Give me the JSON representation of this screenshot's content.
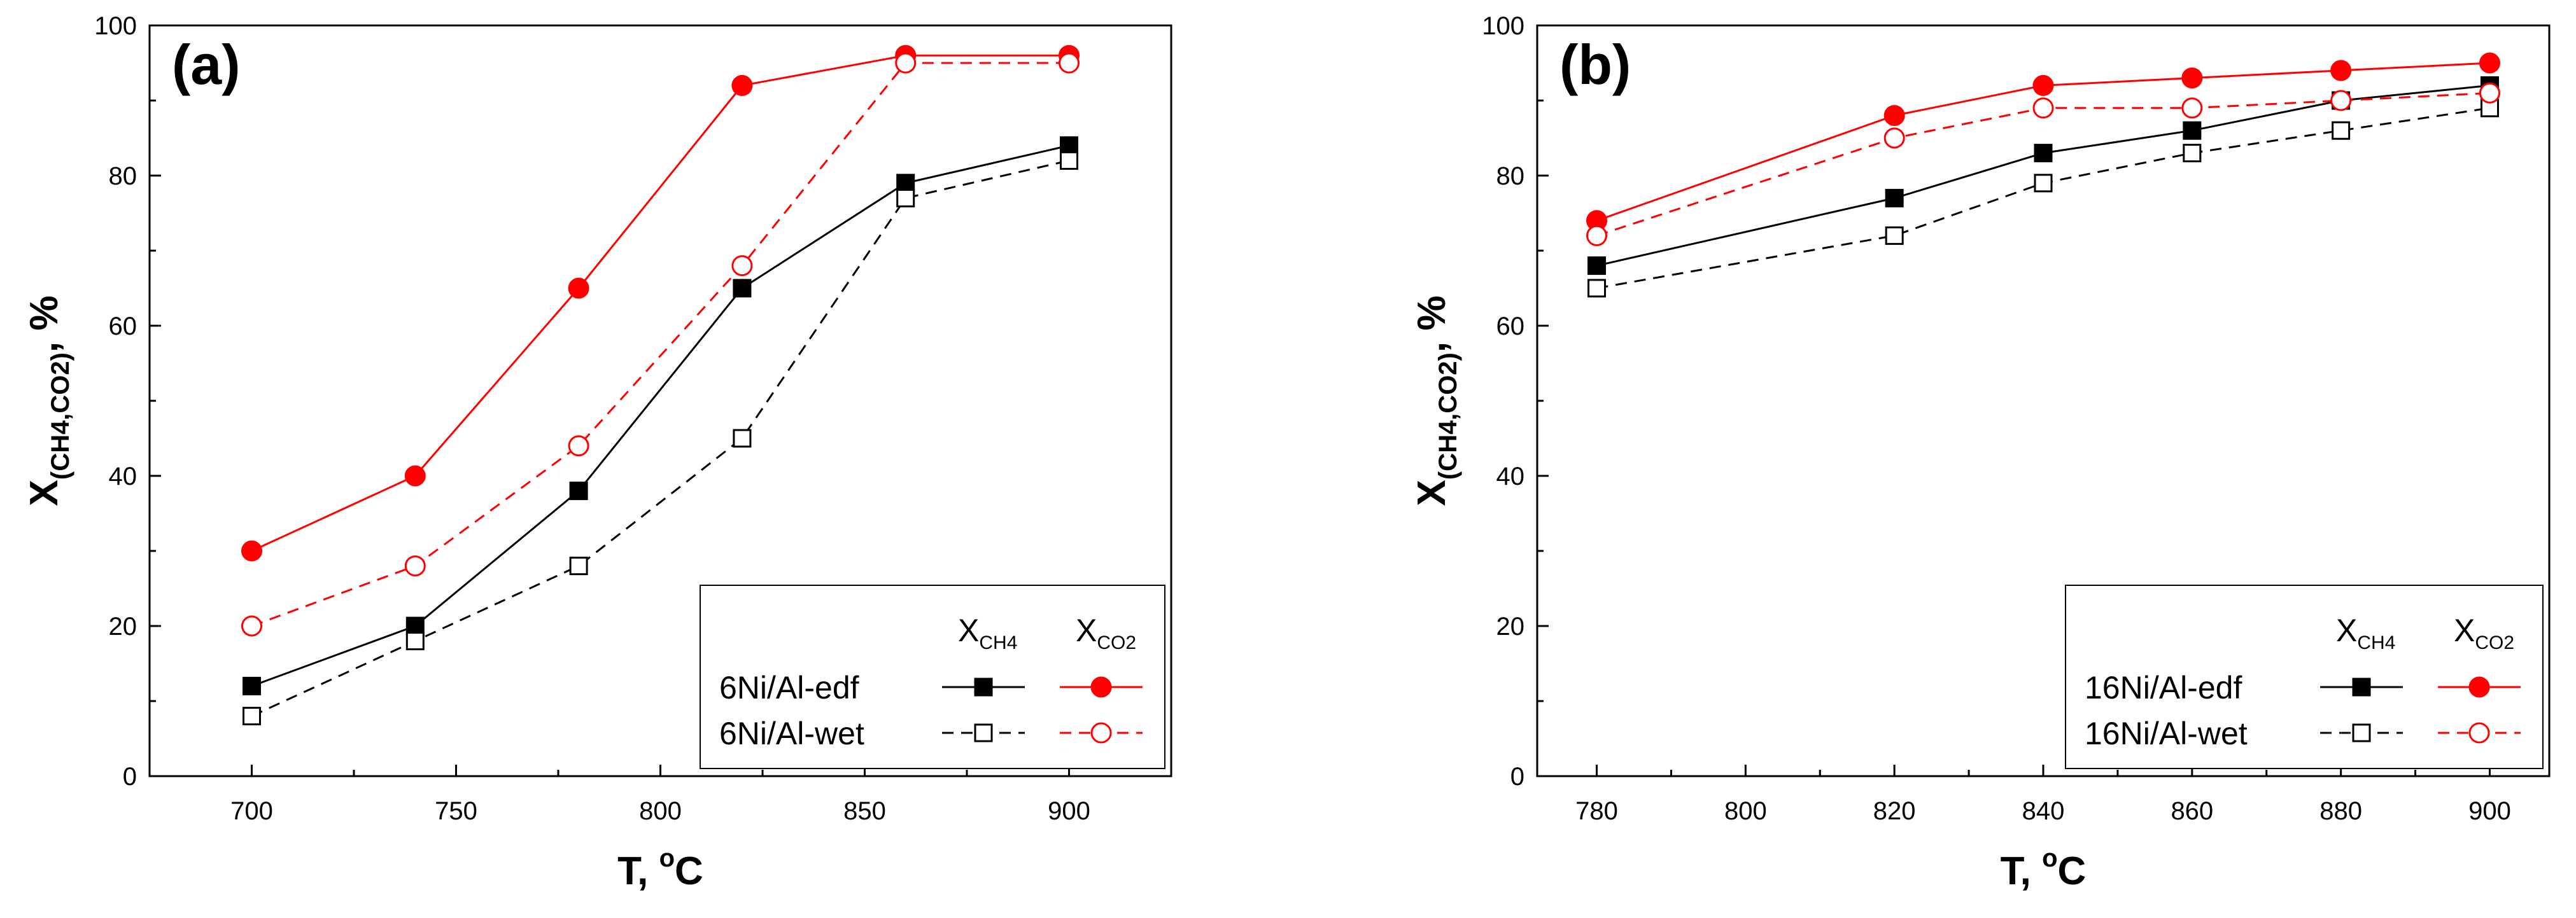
{
  "chart_data": [
    {
      "type": "line",
      "panel_label": "(a)",
      "xlabel": "T, °C",
      "xlabel_parts": {
        "main": "T, ",
        "sup": "o",
        "unit": "C"
      },
      "ylabel": "X(CH4,CO2), %",
      "ylabel_parts": {
        "main": "X",
        "sub": "(CH4,CO2)",
        "tail": ", %"
      },
      "xlim": [
        675,
        925
      ],
      "ylim": [
        0,
        100
      ],
      "xticks": [
        700,
        750,
        800,
        850,
        900
      ],
      "yticks": [
        0,
        20,
        40,
        60,
        80,
        100
      ],
      "legend_position": "bottom-right",
      "legend": {
        "col_headers": [
          {
            "main": "X",
            "sub": "CH4"
          },
          {
            "main": "X",
            "sub": "CO2"
          }
        ],
        "rows": [
          "6Ni/Al-edf",
          "6Ni/Al-wet"
        ]
      },
      "series": [
        {
          "legend_row": 0,
          "metric": "XCH4",
          "color": "#000000",
          "marker": "square",
          "filled": true,
          "dash": false,
          "x": [
            700,
            740,
            780,
            820,
            860,
            900
          ],
          "y": [
            12,
            20,
            38,
            65,
            79,
            84
          ]
        },
        {
          "legend_row": 0,
          "metric": "XCO2",
          "color": "#ff0000",
          "marker": "circle",
          "filled": true,
          "dash": false,
          "x": [
            700,
            740,
            780,
            820,
            860,
            900
          ],
          "y": [
            30,
            40,
            65,
            92,
            96,
            96
          ]
        },
        {
          "legend_row": 1,
          "metric": "XCH4",
          "color": "#000000",
          "marker": "square",
          "filled": false,
          "dash": true,
          "x": [
            700,
            740,
            780,
            820,
            860,
            900
          ],
          "y": [
            8,
            18,
            28,
            45,
            77,
            82
          ]
        },
        {
          "legend_row": 1,
          "metric": "XCO2",
          "color": "#ff0000",
          "marker": "circle",
          "filled": false,
          "dash": true,
          "x": [
            700,
            740,
            780,
            820,
            860,
            900
          ],
          "y": [
            20,
            28,
            44,
            68,
            95,
            95
          ]
        }
      ]
    },
    {
      "type": "line",
      "panel_label": "(b)",
      "xlabel": "T, °C",
      "xlabel_parts": {
        "main": "T, ",
        "sup": "o",
        "unit": "C"
      },
      "ylabel": "X(CH4,CO2), %",
      "ylabel_parts": {
        "main": "X",
        "sub": "(CH4,CO2)",
        "tail": ", %"
      },
      "xlim": [
        772,
        908
      ],
      "ylim": [
        0,
        100
      ],
      "xticks": [
        780,
        800,
        820,
        840,
        860,
        880,
        900
      ],
      "yticks": [
        0,
        20,
        40,
        60,
        80,
        100
      ],
      "legend_position": "bottom-right",
      "legend": {
        "col_headers": [
          {
            "main": "X",
            "sub": "CH4"
          },
          {
            "main": "X",
            "sub": "CO2"
          }
        ],
        "rows": [
          "16Ni/Al-edf",
          "16Ni/Al-wet"
        ]
      },
      "series": [
        {
          "legend_row": 0,
          "metric": "XCH4",
          "color": "#000000",
          "marker": "square",
          "filled": true,
          "dash": false,
          "x": [
            780,
            820,
            840,
            860,
            880,
            900
          ],
          "y": [
            68,
            77,
            83,
            86,
            90,
            92
          ]
        },
        {
          "legend_row": 0,
          "metric": "XCO2",
          "color": "#ff0000",
          "marker": "circle",
          "filled": true,
          "dash": false,
          "x": [
            780,
            820,
            840,
            860,
            880,
            900
          ],
          "y": [
            74,
            88,
            92,
            93,
            94,
            95
          ]
        },
        {
          "legend_row": 1,
          "metric": "XCH4",
          "color": "#000000",
          "marker": "square",
          "filled": false,
          "dash": true,
          "x": [
            780,
            820,
            840,
            860,
            880,
            900
          ],
          "y": [
            65,
            72,
            79,
            83,
            86,
            89
          ]
        },
        {
          "legend_row": 1,
          "metric": "XCO2",
          "color": "#ff0000",
          "marker": "circle",
          "filled": false,
          "dash": true,
          "x": [
            780,
            820,
            840,
            860,
            880,
            900
          ],
          "y": [
            72,
            85,
            89,
            89,
            90,
            91
          ]
        }
      ]
    }
  ]
}
